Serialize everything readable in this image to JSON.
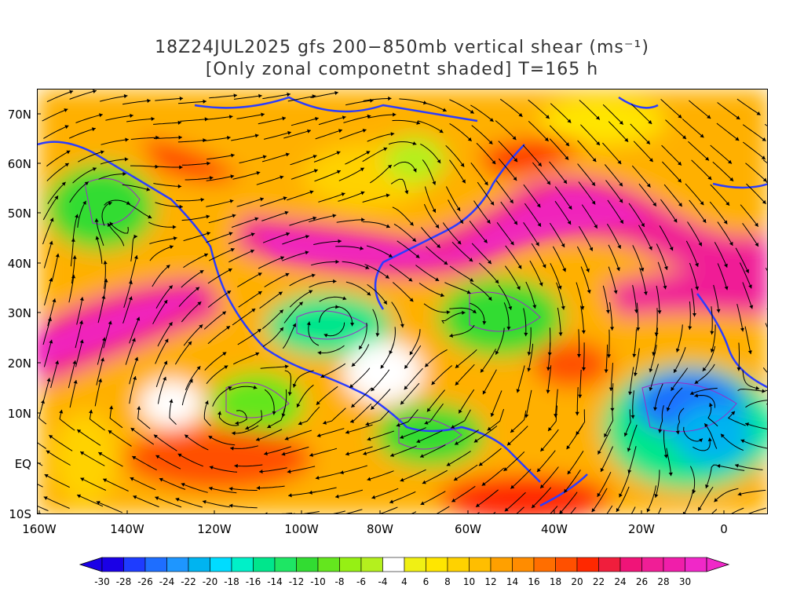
{
  "title": {
    "line1": "18Z24JUL2025 gfs 200−850mb vertical shear (ms⁻¹)",
    "line2": "[Only zonal componetnt shaded] T=165 h"
  },
  "axes": {
    "lat_labels": [
      "70N",
      "60N",
      "50N",
      "40N",
      "30N",
      "20N",
      "10N",
      "EQ",
      "10S"
    ],
    "lon_labels": [
      "160W",
      "140W",
      "120W",
      "100W",
      "80W",
      "60W",
      "40W",
      "20W",
      "0"
    ]
  },
  "colorbar": {
    "labels": [
      "-30",
      "-28",
      "-26",
      "-24",
      "-22",
      "-20",
      "-18",
      "-16",
      "-14",
      "-12",
      "-10",
      "-8",
      "-6",
      "-4",
      "4",
      "6",
      "8",
      "10",
      "12",
      "14",
      "16",
      "18",
      "20",
      "22",
      "24",
      "26",
      "28",
      "30"
    ],
    "colors": [
      "#1a00e6",
      "#1e3cff",
      "#1e6eff",
      "#1e96ff",
      "#00b4f0",
      "#00dcff",
      "#00f0c8",
      "#00e68c",
      "#1ee664",
      "#32dc32",
      "#64e61e",
      "#96f014",
      "#b4f01e",
      "#ffffff",
      "#f0f014",
      "#ffe600",
      "#ffd200",
      "#ffbe00",
      "#ffa000",
      "#ff8c00",
      "#ff6e00",
      "#ff5000",
      "#ff2800",
      "#f01e3c",
      "#f01478",
      "#f01e96",
      "#f01eaa",
      "#f028c8"
    ]
  },
  "legend_colors": {
    "coastline": "#2a3cff",
    "contour": "#9a2bc8",
    "streamline": "#000000"
  }
}
